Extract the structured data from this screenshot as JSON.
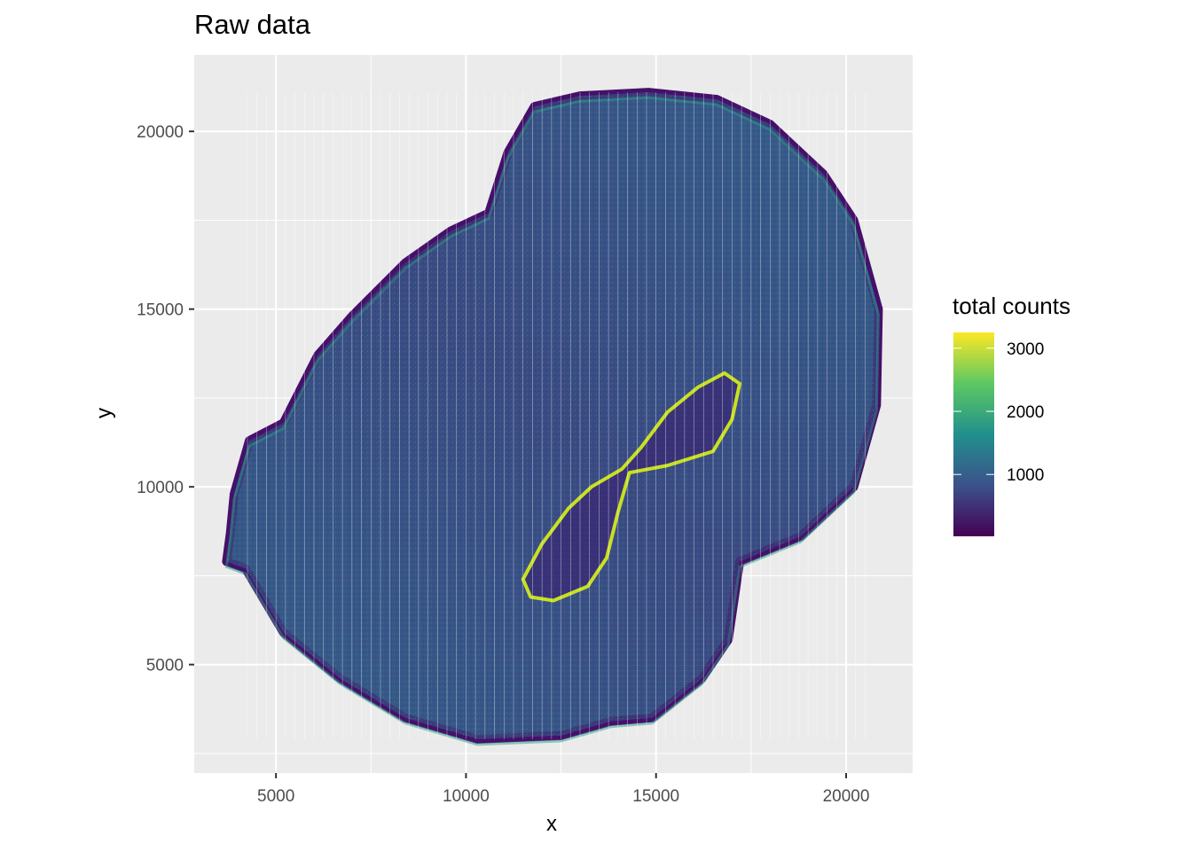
{
  "chart_data": {
    "type": "heatmap",
    "title": "Raw data",
    "xlabel": "x",
    "ylabel": "y",
    "xlim": [
      2850,
      21750
    ],
    "ylim": [
      1950,
      22150
    ],
    "x_ticks": [
      5000,
      10000,
      15000,
      20000
    ],
    "x_tick_labels": [
      "5000",
      "10000",
      "15000",
      "20000"
    ],
    "y_ticks": [
      5000,
      10000,
      15000,
      20000
    ],
    "y_tick_labels": [
      "5000",
      "10000",
      "15000",
      "20000"
    ],
    "grid": true,
    "panel_background": "#ebebeb",
    "legend": {
      "title": "total counts",
      "placement": "right",
      "ticks": [
        1000,
        2000,
        3000
      ],
      "tick_labels": [
        "1000",
        "2000",
        "3000"
      ],
      "range": [
        20,
        3250
      ],
      "colormap": "viridis",
      "colors": [
        "#440154",
        "#3b528b",
        "#21908c",
        "#5dc863",
        "#fde725"
      ]
    },
    "tissue_outline": [
      [
        3700,
        7900
      ],
      [
        4200,
        7700
      ],
      [
        5200,
        5900
      ],
      [
        6700,
        4600
      ],
      [
        8400,
        3500
      ],
      [
        10300,
        2900
      ],
      [
        12500,
        3000
      ],
      [
        13800,
        3400
      ],
      [
        14900,
        3500
      ],
      [
        16200,
        4600
      ],
      [
        16900,
        5700
      ],
      [
        17200,
        7900
      ],
      [
        18800,
        8600
      ],
      [
        20200,
        10000
      ],
      [
        20800,
        12300
      ],
      [
        20850,
        15000
      ],
      [
        20200,
        17500
      ],
      [
        19400,
        18800
      ],
      [
        18000,
        20200
      ],
      [
        16600,
        20900
      ],
      [
        14800,
        21100
      ],
      [
        13000,
        21000
      ],
      [
        11800,
        20700
      ],
      [
        11100,
        19400
      ],
      [
        10600,
        17700
      ],
      [
        9600,
        17200
      ],
      [
        8400,
        16300
      ],
      [
        7000,
        14800
      ],
      [
        6100,
        13700
      ],
      [
        5200,
        11800
      ],
      [
        4300,
        11300
      ],
      [
        3900,
        9800
      ],
      [
        3800,
        8700
      ]
    ],
    "high_count_ring": [
      [
        16800,
        13200
      ],
      [
        17200,
        12900
      ],
      [
        17000,
        11900
      ],
      [
        16500,
        11000
      ],
      [
        15300,
        10600
      ],
      [
        14300,
        10400
      ],
      [
        14000,
        9300
      ],
      [
        13700,
        8000
      ],
      [
        13200,
        7200
      ],
      [
        12300,
        6800
      ],
      [
        11700,
        6900
      ],
      [
        11500,
        7400
      ],
      [
        12000,
        8400
      ],
      [
        12700,
        9400
      ],
      [
        13300,
        10000
      ],
      [
        14100,
        10500
      ],
      [
        14600,
        11100
      ],
      [
        15300,
        12100
      ],
      [
        16100,
        12800
      ]
    ]
  }
}
